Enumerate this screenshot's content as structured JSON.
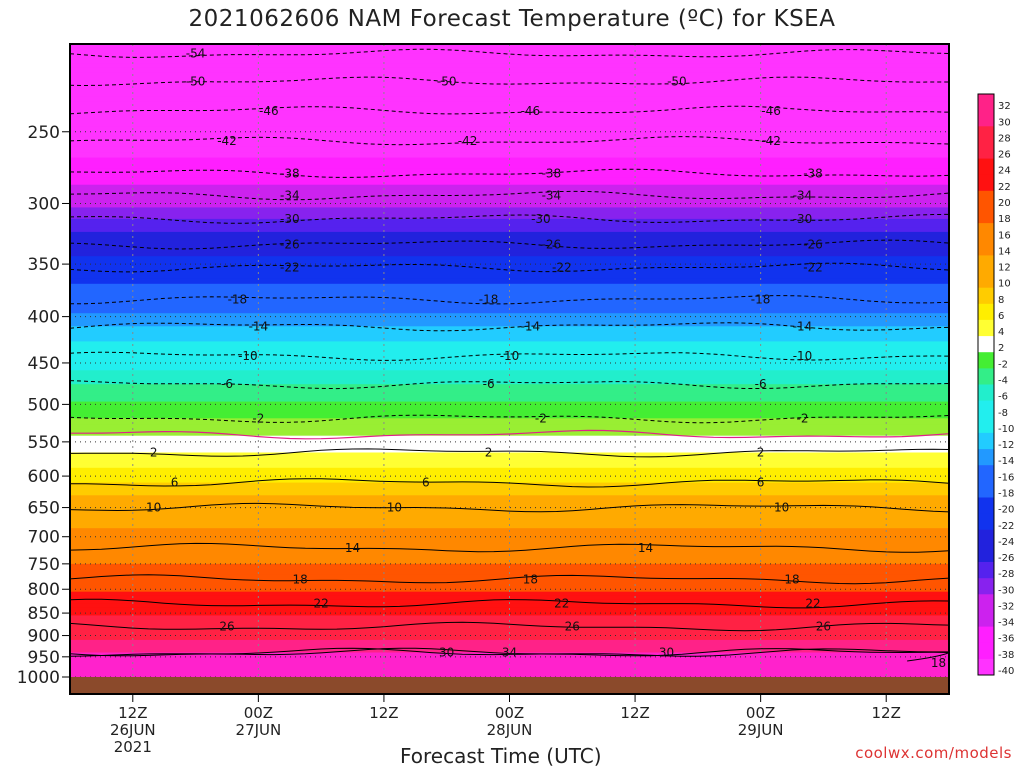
{
  "title": "2021062606 NAM Forecast Temperature (ºC) for KSEA",
  "xlabel": "Forecast Time (UTC)",
  "credit": "coolwx.com/models",
  "colors": {
    "ground": "#8b4a2b",
    "warm_contour": "#000000",
    "cold_contour": "#000000",
    "zero_contour": "#e0208a"
  },
  "chart_data": {
    "type": "heatmap",
    "title": "2021062606 NAM Forecast Temperature (ºC) for KSEA",
    "xlabel": "Forecast Time (UTC)",
    "ylabel": "",
    "y_axis": {
      "scale": "log",
      "reversed": true,
      "range": [
        1000,
        200
      ],
      "ticks": [
        250,
        300,
        350,
        400,
        450,
        500,
        550,
        600,
        650,
        700,
        750,
        800,
        850,
        900,
        950,
        1000
      ]
    },
    "x_axis": {
      "range_hours": [
        0,
        84
      ],
      "ticks": [
        {
          "hour": 6,
          "line1": "12Z",
          "line2": "26JUN",
          "line3": "2021"
        },
        {
          "hour": 18,
          "line1": "00Z",
          "line2": "27JUN",
          "line3": ""
        },
        {
          "hour": 30,
          "line1": "12Z",
          "line2": "",
          "line3": ""
        },
        {
          "hour": 42,
          "line1": "00Z",
          "line2": "28JUN",
          "line3": ""
        },
        {
          "hour": 54,
          "line1": "12Z",
          "line2": "",
          "line3": ""
        },
        {
          "hour": 66,
          "line1": "00Z",
          "line2": "29JUN",
          "line3": ""
        },
        {
          "hour": 78,
          "line1": "12Z",
          "line2": "",
          "line3": ""
        }
      ]
    },
    "colorbar": {
      "ticks": [
        32,
        30,
        28,
        26,
        24,
        22,
        20,
        18,
        16,
        14,
        12,
        10,
        8,
        6,
        4,
        2,
        -2,
        -4,
        -6,
        -8,
        -10,
        -12,
        -14,
        -16,
        -18,
        -20,
        -22,
        -24,
        -26,
        -28,
        -30,
        -32,
        -34,
        -36,
        -38,
        -40
      ]
    },
    "contours": [
      {
        "value": -54,
        "pressure": 205,
        "labels": [
          {
            "hour": 12,
            "text": "-54"
          }
        ]
      },
      {
        "value": -50,
        "pressure": 220,
        "labels": [
          {
            "hour": 12,
            "text": "-50"
          },
          {
            "hour": 36,
            "text": "-50"
          },
          {
            "hour": 58,
            "text": "-50"
          }
        ]
      },
      {
        "value": -46,
        "pressure": 237,
        "labels": [
          {
            "hour": 19,
            "text": "-46"
          },
          {
            "hour": 44,
            "text": "-46"
          },
          {
            "hour": 67,
            "text": "-46"
          }
        ]
      },
      {
        "value": -42,
        "pressure": 256,
        "labels": [
          {
            "hour": 15,
            "text": "-42"
          },
          {
            "hour": 38,
            "text": "-42"
          },
          {
            "hour": 67,
            "text": "-42"
          }
        ]
      },
      {
        "value": -38,
        "pressure": 278,
        "labels": [
          {
            "hour": 21,
            "text": "-38"
          },
          {
            "hour": 46,
            "text": "-38"
          },
          {
            "hour": 71,
            "text": "-38"
          }
        ]
      },
      {
        "value": -34,
        "pressure": 294,
        "labels": [
          {
            "hour": 21,
            "text": "-34"
          },
          {
            "hour": 46,
            "text": "-34"
          },
          {
            "hour": 70,
            "text": "-34"
          }
        ]
      },
      {
        "value": -30,
        "pressure": 312,
        "labels": [
          {
            "hour": 21,
            "text": "-30"
          },
          {
            "hour": 45,
            "text": "-30"
          },
          {
            "hour": 70,
            "text": "-30"
          }
        ]
      },
      {
        "value": -26,
        "pressure": 333,
        "labels": [
          {
            "hour": 21,
            "text": "-26"
          },
          {
            "hour": 46,
            "text": "-26"
          },
          {
            "hour": 71,
            "text": "-26"
          }
        ]
      },
      {
        "value": -22,
        "pressure": 353,
        "labels": [
          {
            "hour": 21,
            "text": "-22"
          },
          {
            "hour": 47,
            "text": "-22"
          },
          {
            "hour": 71,
            "text": "-22"
          }
        ]
      },
      {
        "value": -18,
        "pressure": 383,
        "labels": [
          {
            "hour": 16,
            "text": "-18"
          },
          {
            "hour": 40,
            "text": "-18"
          },
          {
            "hour": 66,
            "text": "-18"
          }
        ]
      },
      {
        "value": -14,
        "pressure": 410,
        "labels": [
          {
            "hour": 18,
            "text": "-14"
          },
          {
            "hour": 44,
            "text": "-14"
          },
          {
            "hour": 70,
            "text": "-14"
          }
        ]
      },
      {
        "value": -10,
        "pressure": 442,
        "labels": [
          {
            "hour": 17,
            "text": "-10"
          },
          {
            "hour": 42,
            "text": "-10"
          },
          {
            "hour": 70,
            "text": "-10"
          }
        ]
      },
      {
        "value": -6,
        "pressure": 475,
        "labels": [
          {
            "hour": 15,
            "text": "-6"
          },
          {
            "hour": 40,
            "text": "-6"
          },
          {
            "hour": 66,
            "text": "-6"
          }
        ]
      },
      {
        "value": -2,
        "pressure": 518,
        "labels": [
          {
            "hour": 18,
            "text": "-2"
          },
          {
            "hour": 45,
            "text": "-2"
          },
          {
            "hour": 70,
            "text": "-2"
          }
        ]
      },
      {
        "value": 2,
        "pressure": 565,
        "labels": [
          {
            "hour": 8,
            "text": "2"
          },
          {
            "hour": 40,
            "text": "2"
          },
          {
            "hour": 66,
            "text": "2"
          }
        ]
      },
      {
        "value": 6,
        "pressure": 610,
        "labels": [
          {
            "hour": 10,
            "text": "6"
          },
          {
            "hour": 34,
            "text": "6"
          },
          {
            "hour": 66,
            "text": "6"
          }
        ]
      },
      {
        "value": 10,
        "pressure": 650,
        "labels": [
          {
            "hour": 8,
            "text": "10"
          },
          {
            "hour": 31,
            "text": "10"
          },
          {
            "hour": 68,
            "text": "10"
          }
        ]
      },
      {
        "value": 14,
        "pressure": 720,
        "labels": [
          {
            "hour": 27,
            "text": "14"
          },
          {
            "hour": 55,
            "text": "14"
          }
        ]
      },
      {
        "value": 18,
        "pressure": 780,
        "labels": [
          {
            "hour": 22,
            "text": "18"
          },
          {
            "hour": 44,
            "text": "18"
          },
          {
            "hour": 69,
            "text": "18"
          }
        ]
      },
      {
        "value": 22,
        "pressure": 830,
        "labels": [
          {
            "hour": 24,
            "text": "22"
          },
          {
            "hour": 47,
            "text": "22"
          },
          {
            "hour": 71,
            "text": "22"
          }
        ]
      },
      {
        "value": 26,
        "pressure": 880,
        "labels": [
          {
            "hour": 15,
            "text": "26"
          },
          {
            "hour": 48,
            "text": "26"
          },
          {
            "hour": 72,
            "text": "26"
          }
        ]
      },
      {
        "value": 30,
        "pressure": 940,
        "labels": [
          {
            "hour": 36,
            "text": "30"
          },
          {
            "hour": 57,
            "text": "30"
          }
        ]
      },
      {
        "value": 34,
        "pressure": 940,
        "labels": [
          {
            "hour": 42,
            "text": "34"
          }
        ]
      },
      {
        "value": 18,
        "pressure": 965,
        "labels": [
          {
            "hour": 83,
            "text": "18"
          }
        ]
      }
    ]
  }
}
